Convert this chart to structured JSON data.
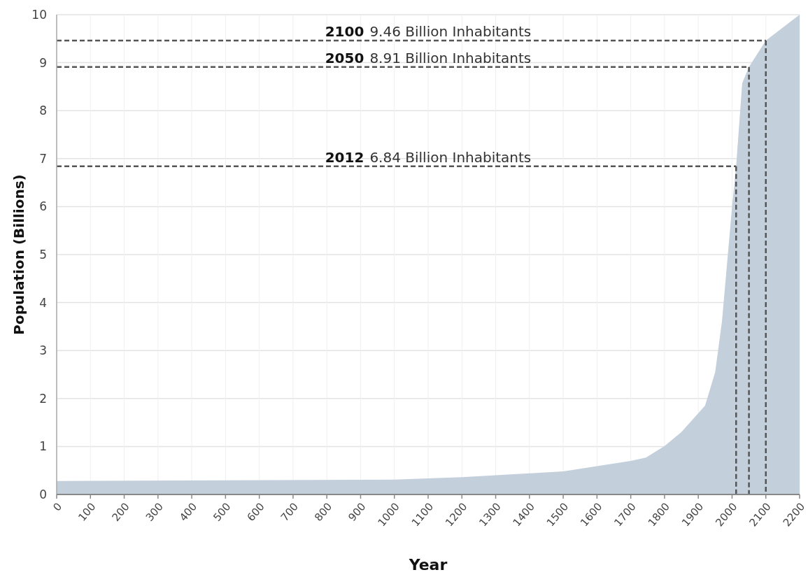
{
  "chart_data": {
    "type": "area",
    "xlabel": "Year",
    "ylabel": "Population (Billions)",
    "x": [
      0,
      1000,
      1200,
      1400,
      1500,
      1600,
      1700,
      1745,
      1800,
      1850,
      1920,
      1950,
      1970,
      2000,
      2012,
      2030,
      2050,
      2100,
      2200
    ],
    "series": [
      {
        "color": "#c4cfdc",
        "values": [
          0.28,
          0.31,
          0.36,
          0.44,
          0.48,
          0.59,
          0.7,
          0.77,
          1.01,
          1.3,
          1.85,
          2.55,
          3.6,
          6.0,
          6.84,
          8.57,
          8.91,
          9.46,
          10.0
        ]
      }
    ],
    "xlim": [
      0,
      2200
    ],
    "xticks": [
      0,
      100,
      200,
      300,
      400,
      500,
      600,
      700,
      800,
      900,
      1000,
      1100,
      1200,
      1300,
      1400,
      1500,
      1600,
      1700,
      1800,
      1900,
      2000,
      2100,
      2200
    ],
    "ylim": [
      0,
      10
    ],
    "yticks": [
      0,
      1,
      2,
      3,
      4,
      5,
      6,
      7,
      8,
      9,
      10
    ],
    "grid": true,
    "ref_lines": [
      {
        "axis": "y",
        "value": 9.46,
        "label": "2100 9.46 Billion Inhabitants",
        "color": "#555555",
        "line_style": "dashed"
      },
      {
        "axis": "y",
        "value": 8.91,
        "label": "2050 8.91 Billion Inhabitants",
        "color": "#555555",
        "line_style": "dashed"
      },
      {
        "axis": "y",
        "value": 6.84,
        "label": "2012 6.84 Billion Inhabitants",
        "color": "#555555",
        "line_style": "dashed"
      },
      {
        "axis": "x",
        "value": 2100,
        "color": "#555555",
        "line_style": "dashed"
      },
      {
        "axis": "x",
        "value": 2050,
        "color": "#555555",
        "line_style": "dashed"
      },
      {
        "axis": "x",
        "value": 2012,
        "color": "#555555",
        "line_style": "dashed"
      }
    ]
  }
}
